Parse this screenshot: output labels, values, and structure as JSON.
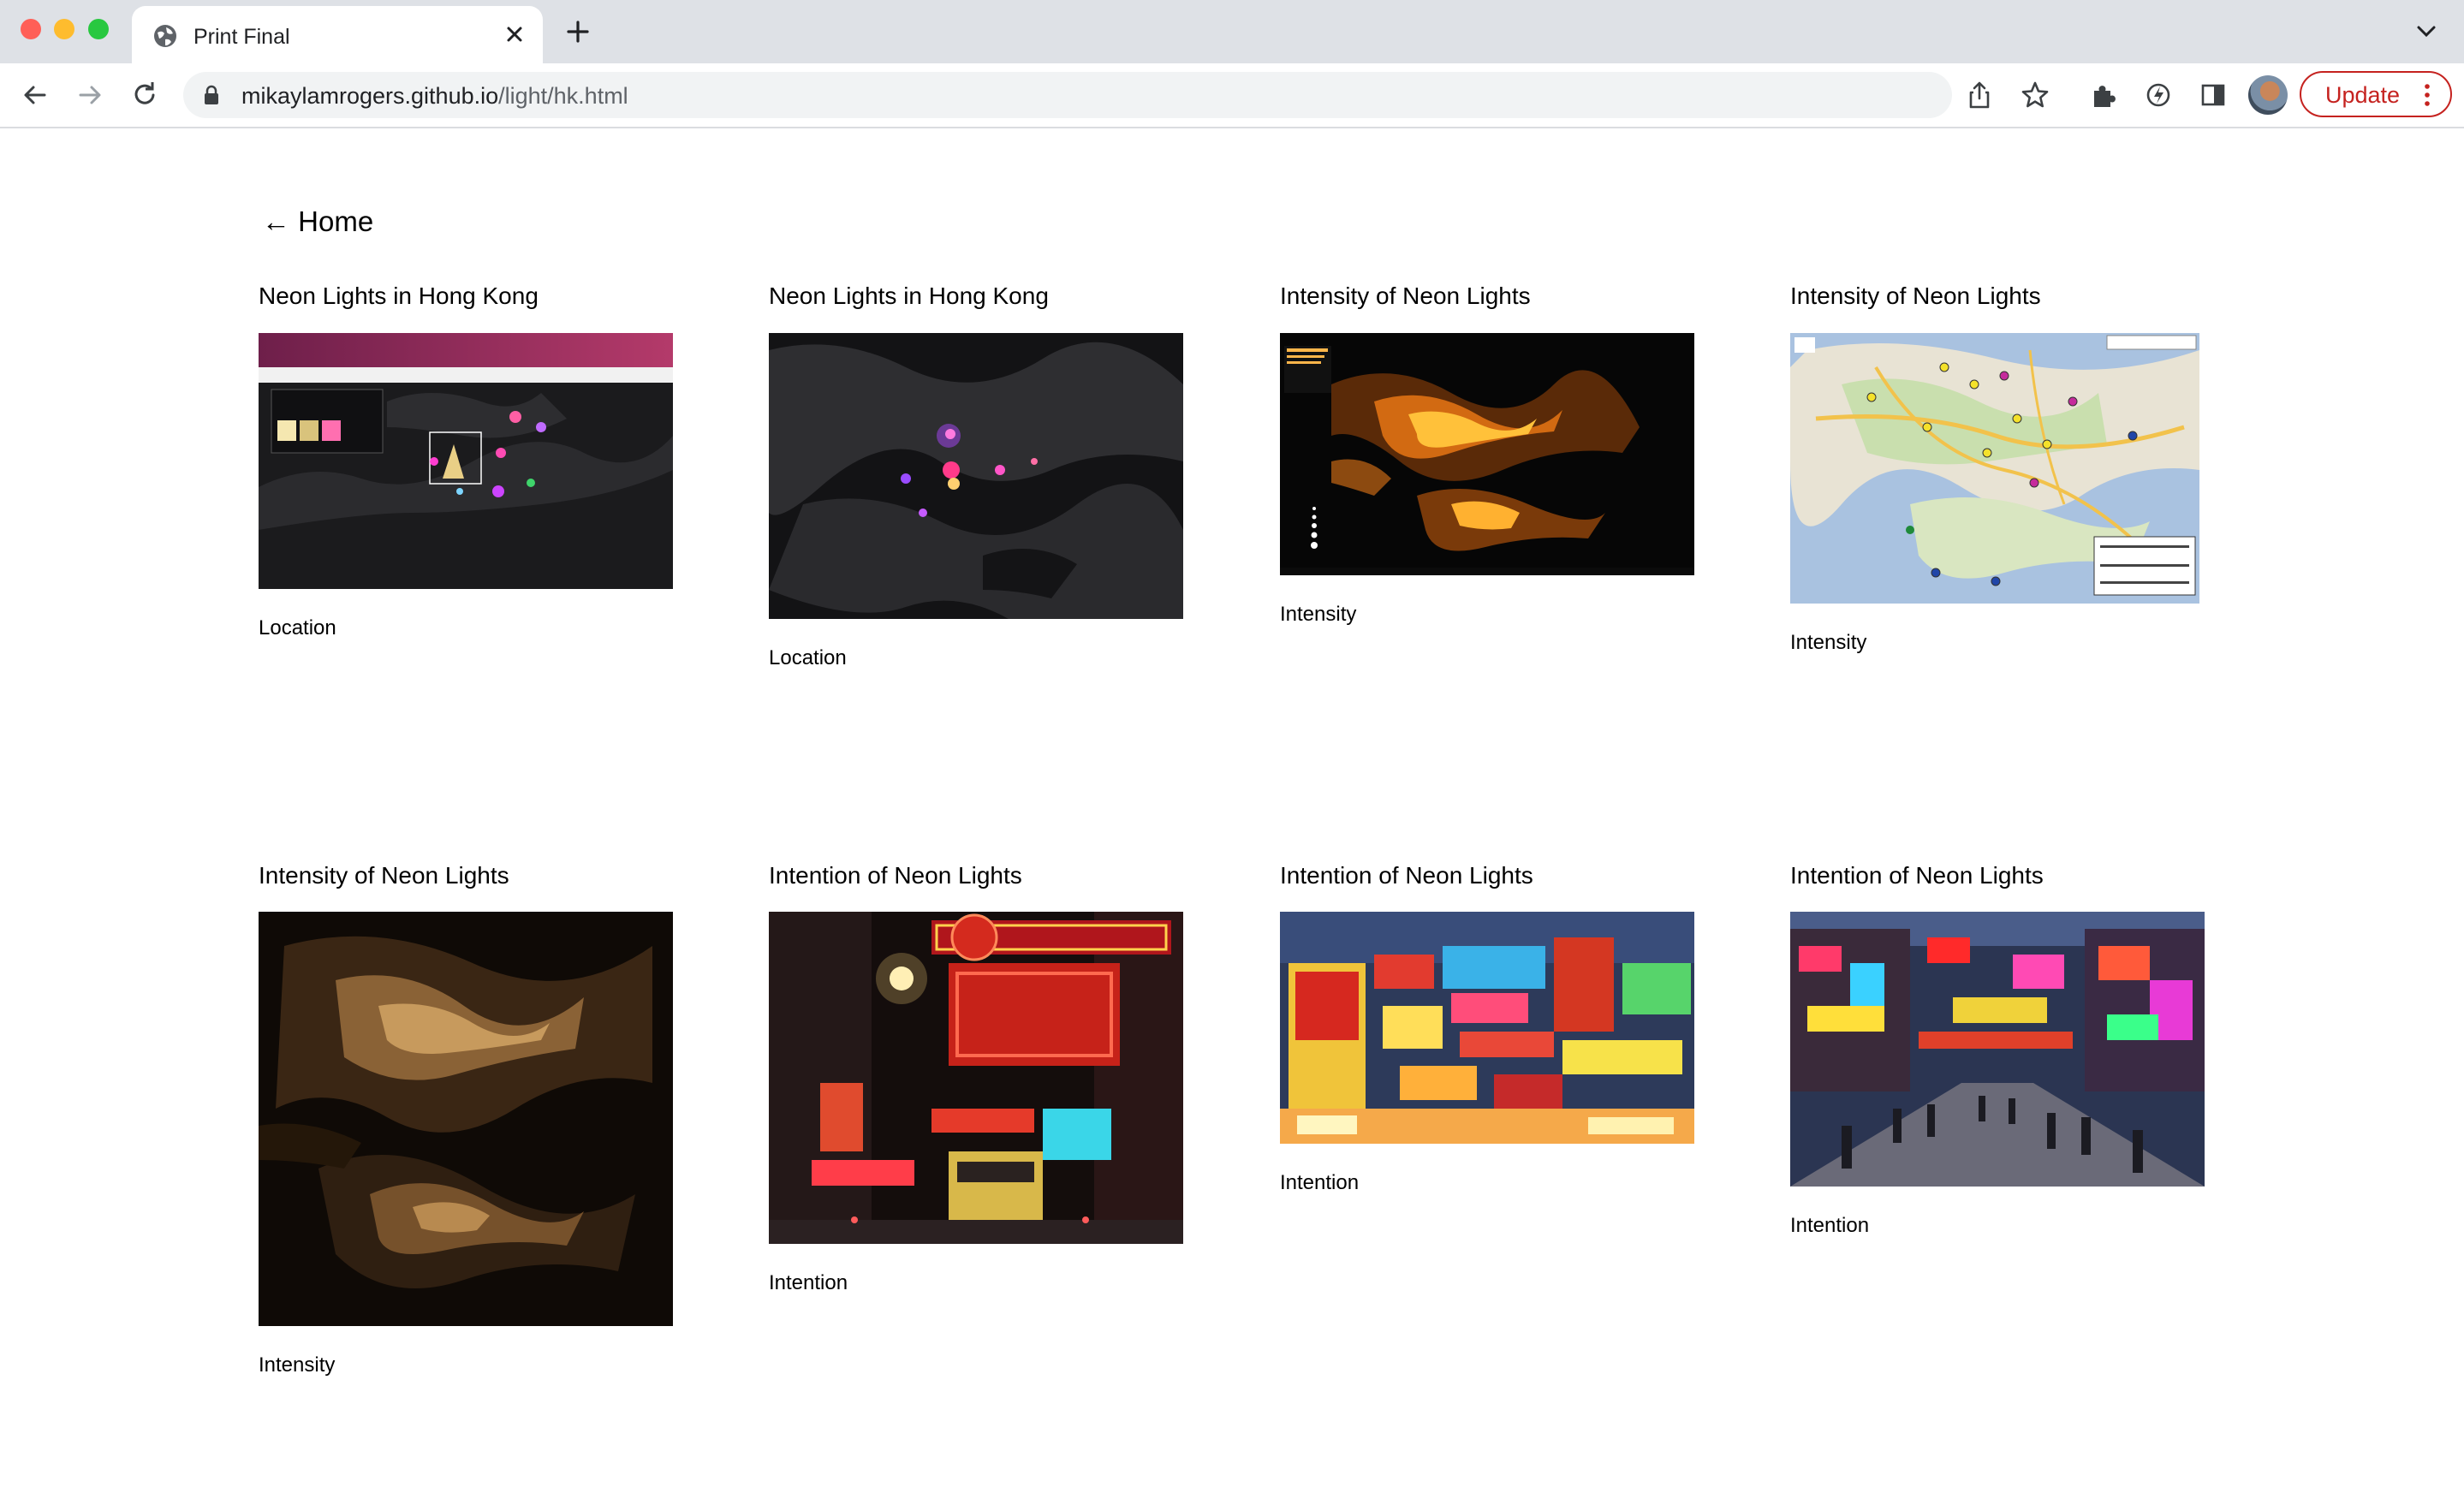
{
  "browser": {
    "tab_title": "Print Final",
    "url_host": "mikaylamrogers.github.io",
    "url_path": "/light/hk.html",
    "update_label": "Update"
  },
  "page": {
    "home_link": "← Home",
    "cards": [
      {
        "title": "Neon Lights in Hong Kong",
        "caption": "Location",
        "image": "neon-location-map-app"
      },
      {
        "title": "Neon Lights in Hong Kong",
        "caption": "Location",
        "image": "neon-location-dark-map"
      },
      {
        "title": "Intensity of Neon Lights",
        "caption": "Intensity",
        "image": "night-sky-brightness-map"
      },
      {
        "title": "Intensity of Neon Lights",
        "caption": "Intensity",
        "image": "street-map-with-markers"
      },
      {
        "title": "Intensity of Neon Lights",
        "caption": "Intensity",
        "image": "satellite-night-lights"
      },
      {
        "title": "Intention of Neon Lights",
        "caption": "Intention",
        "image": "neon-street-photo"
      },
      {
        "title": "Intention of Neon Lights",
        "caption": "Intention",
        "image": "neon-signs-photo"
      },
      {
        "title": "Intention of Neon Lights",
        "caption": "Intention",
        "image": "neon-street-crowd-photo"
      }
    ]
  },
  "colors": {
    "tabbar_bg": "#dee1e6",
    "update_red": "#c5221f"
  }
}
